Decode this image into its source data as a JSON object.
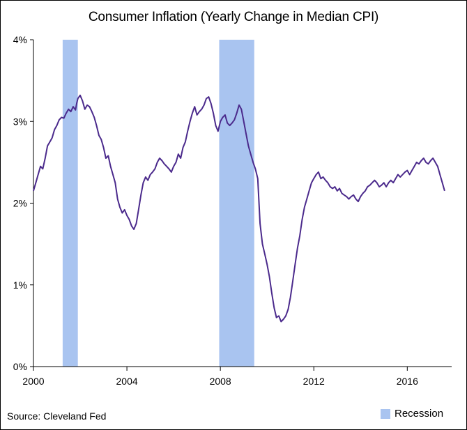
{
  "chart_data": {
    "type": "line",
    "title": "Consumer Inflation (Yearly Change in Median CPI)",
    "source": "Source: Cleveland Fed",
    "legend": "Recession",
    "legend_position": "bottom-right",
    "colors": {
      "line": "#4b2a8c",
      "recession": "#a9c4f0",
      "axis": "#000000"
    },
    "xlim": [
      2000,
      2017.9
    ],
    "ylim": [
      0,
      4
    ],
    "x_ticks": [
      2000,
      2004,
      2008,
      2012,
      2016
    ],
    "x_tick_labels": [
      "2000",
      "2004",
      "2008",
      "2012",
      "2016"
    ],
    "y_ticks": [
      0,
      1,
      2,
      3,
      4
    ],
    "y_tick_labels": [
      "0%",
      "1%",
      "2%",
      "3%",
      "4%"
    ],
    "grid": false,
    "recessions": [
      [
        2001.25,
        2001.9
      ],
      [
        2007.95,
        2009.45
      ]
    ],
    "series": [
      {
        "x": [
          2000.0,
          2000.1,
          2000.2,
          2000.3,
          2000.4,
          2000.5,
          2000.6,
          2000.7,
          2000.8,
          2000.9,
          2001.0,
          2001.1,
          2001.2,
          2001.3,
          2001.4,
          2001.5,
          2001.6,
          2001.7,
          2001.8,
          2001.85,
          2001.9,
          2002.0,
          2002.1,
          2002.2,
          2002.3,
          2002.4,
          2002.5,
          2002.6,
          2002.7,
          2002.8,
          2002.9,
          2003.0,
          2003.1,
          2003.2,
          2003.3,
          2003.4,
          2003.5,
          2003.6,
          2003.7,
          2003.8,
          2003.9,
          2004.0,
          2004.1,
          2004.2,
          2004.3,
          2004.4,
          2004.5,
          2004.6,
          2004.7,
          2004.8,
          2004.9,
          2005.0,
          2005.1,
          2005.2,
          2005.3,
          2005.4,
          2005.5,
          2005.6,
          2005.7,
          2005.8,
          2005.9,
          2006.0,
          2006.1,
          2006.2,
          2006.3,
          2006.4,
          2006.5,
          2006.6,
          2006.7,
          2006.8,
          2006.9,
          2007.0,
          2007.1,
          2007.2,
          2007.3,
          2007.4,
          2007.5,
          2007.6,
          2007.7,
          2007.8,
          2007.9,
          2008.0,
          2008.1,
          2008.2,
          2008.3,
          2008.4,
          2008.5,
          2008.6,
          2008.7,
          2008.8,
          2008.9,
          2009.0,
          2009.1,
          2009.2,
          2009.3,
          2009.4,
          2009.5,
          2009.6,
          2009.7,
          2009.8,
          2009.9,
          2010.0,
          2010.1,
          2010.2,
          2010.3,
          2010.4,
          2010.5,
          2010.6,
          2010.7,
          2010.8,
          2010.9,
          2011.0,
          2011.1,
          2011.2,
          2011.3,
          2011.4,
          2011.5,
          2011.6,
          2011.7,
          2011.8,
          2011.9,
          2012.0,
          2012.1,
          2012.2,
          2012.3,
          2012.4,
          2012.5,
          2012.6,
          2012.7,
          2012.8,
          2012.9,
          2013.0,
          2013.1,
          2013.2,
          2013.3,
          2013.4,
          2013.5,
          2013.6,
          2013.7,
          2013.8,
          2013.9,
          2014.0,
          2014.1,
          2014.2,
          2014.3,
          2014.4,
          2014.5,
          2014.6,
          2014.7,
          2014.8,
          2014.9,
          2015.0,
          2015.1,
          2015.2,
          2015.3,
          2015.4,
          2015.5,
          2015.6,
          2015.7,
          2015.8,
          2015.9,
          2016.0,
          2016.1,
          2016.2,
          2016.3,
          2016.4,
          2016.5,
          2016.6,
          2016.7,
          2016.8,
          2016.9,
          2017.0,
          2017.1,
          2017.2,
          2017.3,
          2017.4,
          2017.5,
          2017.6
        ],
        "y": [
          2.15,
          2.25,
          2.35,
          2.45,
          2.42,
          2.55,
          2.7,
          2.75,
          2.8,
          2.9,
          2.95,
          3.02,
          3.05,
          3.04,
          3.1,
          3.15,
          3.12,
          3.18,
          3.14,
          3.22,
          3.28,
          3.32,
          3.25,
          3.15,
          3.2,
          3.18,
          3.12,
          3.05,
          2.95,
          2.83,
          2.78,
          2.68,
          2.55,
          2.58,
          2.45,
          2.35,
          2.25,
          2.05,
          1.95,
          1.88,
          1.92,
          1.85,
          1.8,
          1.72,
          1.68,
          1.75,
          1.92,
          2.1,
          2.25,
          2.32,
          2.28,
          2.35,
          2.38,
          2.42,
          2.5,
          2.55,
          2.52,
          2.48,
          2.45,
          2.42,
          2.38,
          2.45,
          2.5,
          2.6,
          2.55,
          2.68,
          2.75,
          2.88,
          3.0,
          3.1,
          3.18,
          3.08,
          3.12,
          3.15,
          3.2,
          3.28,
          3.3,
          3.22,
          3.1,
          2.95,
          2.88,
          3.0,
          3.05,
          3.08,
          2.98,
          2.95,
          2.98,
          3.02,
          3.1,
          3.2,
          3.15,
          3.0,
          2.85,
          2.7,
          2.6,
          2.5,
          2.42,
          2.3,
          1.75,
          1.5,
          1.38,
          1.25,
          1.1,
          0.9,
          0.72,
          0.6,
          0.62,
          0.55,
          0.58,
          0.62,
          0.7,
          0.85,
          1.05,
          1.25,
          1.45,
          1.6,
          1.8,
          1.95,
          2.05,
          2.15,
          2.25,
          2.3,
          2.35,
          2.38,
          2.3,
          2.32,
          2.28,
          2.25,
          2.2,
          2.18,
          2.2,
          2.15,
          2.18,
          2.12,
          2.1,
          2.08,
          2.05,
          2.08,
          2.1,
          2.05,
          2.02,
          2.08,
          2.12,
          2.15,
          2.2,
          2.22,
          2.25,
          2.28,
          2.25,
          2.2,
          2.22,
          2.25,
          2.2,
          2.25,
          2.28,
          2.25,
          2.3,
          2.35,
          2.32,
          2.35,
          2.38,
          2.4,
          2.35,
          2.4,
          2.45,
          2.5,
          2.48,
          2.52,
          2.55,
          2.5,
          2.48,
          2.52,
          2.55,
          2.5,
          2.45,
          2.35,
          2.25,
          2.15
        ]
      }
    ]
  }
}
